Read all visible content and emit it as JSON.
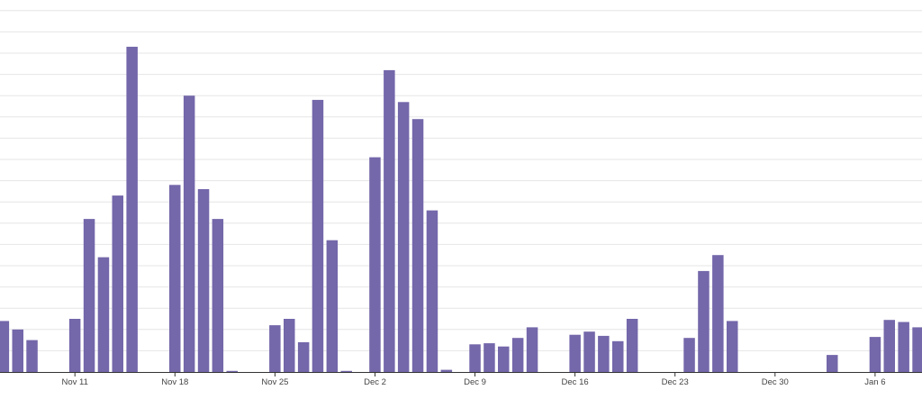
{
  "chart_data": {
    "type": "bar",
    "title": "",
    "xlabel": "",
    "ylabel": "",
    "grid": true,
    "bar_color": "#7467AA",
    "grid_color": "#e6e6e6",
    "axis_color": "#333333",
    "tick_label_color": "#444444",
    "first_date": "2024-11-06",
    "ylim": [
      0,
      17
    ],
    "y_gridlines": [
      1,
      2,
      3,
      4,
      5,
      6,
      7,
      8,
      9,
      10,
      11,
      12,
      13,
      14,
      15,
      16,
      17
    ],
    "x_ticks": [
      {
        "date": "2024-11-11",
        "label": "Nov 11"
      },
      {
        "date": "2024-11-18",
        "label": "Nov 18"
      },
      {
        "date": "2024-11-25",
        "label": "Nov 25"
      },
      {
        "date": "2024-12-02",
        "label": "Dec 2"
      },
      {
        "date": "2024-12-09",
        "label": "Dec 9"
      },
      {
        "date": "2024-12-16",
        "label": "Dec 16"
      },
      {
        "date": "2024-12-23",
        "label": "Dec 23"
      },
      {
        "date": "2024-12-30",
        "label": "Dec 30"
      },
      {
        "date": "2025-01-06",
        "label": "Jan 6"
      }
    ],
    "dates": [
      "2024-11-06",
      "2024-11-07",
      "2024-11-08",
      "2024-11-09",
      "2024-11-10",
      "2024-11-11",
      "2024-11-12",
      "2024-11-13",
      "2024-11-14",
      "2024-11-15",
      "2024-11-16",
      "2024-11-17",
      "2024-11-18",
      "2024-11-19",
      "2024-11-20",
      "2024-11-21",
      "2024-11-22",
      "2024-11-23",
      "2024-11-24",
      "2024-11-25",
      "2024-11-26",
      "2024-11-27",
      "2024-11-28",
      "2024-11-29",
      "2024-11-30",
      "2024-12-01",
      "2024-12-02",
      "2024-12-03",
      "2024-12-04",
      "2024-12-05",
      "2024-12-06",
      "2024-12-07",
      "2024-12-08",
      "2024-12-09",
      "2024-12-10",
      "2024-12-11",
      "2024-12-12",
      "2024-12-13",
      "2024-12-14",
      "2024-12-15",
      "2024-12-16",
      "2024-12-17",
      "2024-12-18",
      "2024-12-19",
      "2024-12-20",
      "2024-12-21",
      "2024-12-22",
      "2024-12-23",
      "2024-12-24",
      "2024-12-25",
      "2024-12-26",
      "2024-12-27",
      "2024-12-28",
      "2024-12-29",
      "2024-12-30",
      "2024-12-31",
      "2025-01-01",
      "2025-01-02",
      "2025-01-03",
      "2025-01-04",
      "2025-01-05",
      "2025-01-06",
      "2025-01-07",
      "2025-01-08",
      "2025-01-09",
      "2025-01-10"
    ],
    "values": [
      2.4,
      2.0,
      1.5,
      0,
      0,
      2.5,
      7.2,
      5.4,
      8.3,
      15.3,
      0,
      0,
      8.8,
      13.0,
      8.6,
      7.2,
      0.05,
      0,
      0,
      2.2,
      2.5,
      1.4,
      12.8,
      6.2,
      0.05,
      0,
      10.1,
      14.2,
      12.7,
      11.9,
      7.6,
      0.1,
      0,
      1.3,
      1.35,
      1.2,
      1.6,
      2.1,
      0,
      0,
      1.75,
      1.9,
      1.7,
      1.45,
      2.5,
      0,
      0,
      0,
      1.6,
      4.75,
      5.5,
      2.4,
      0,
      0,
      0,
      0,
      0,
      0,
      0.8,
      0,
      0,
      1.65,
      2.45,
      2.35,
      2.1,
      1.55
    ]
  }
}
